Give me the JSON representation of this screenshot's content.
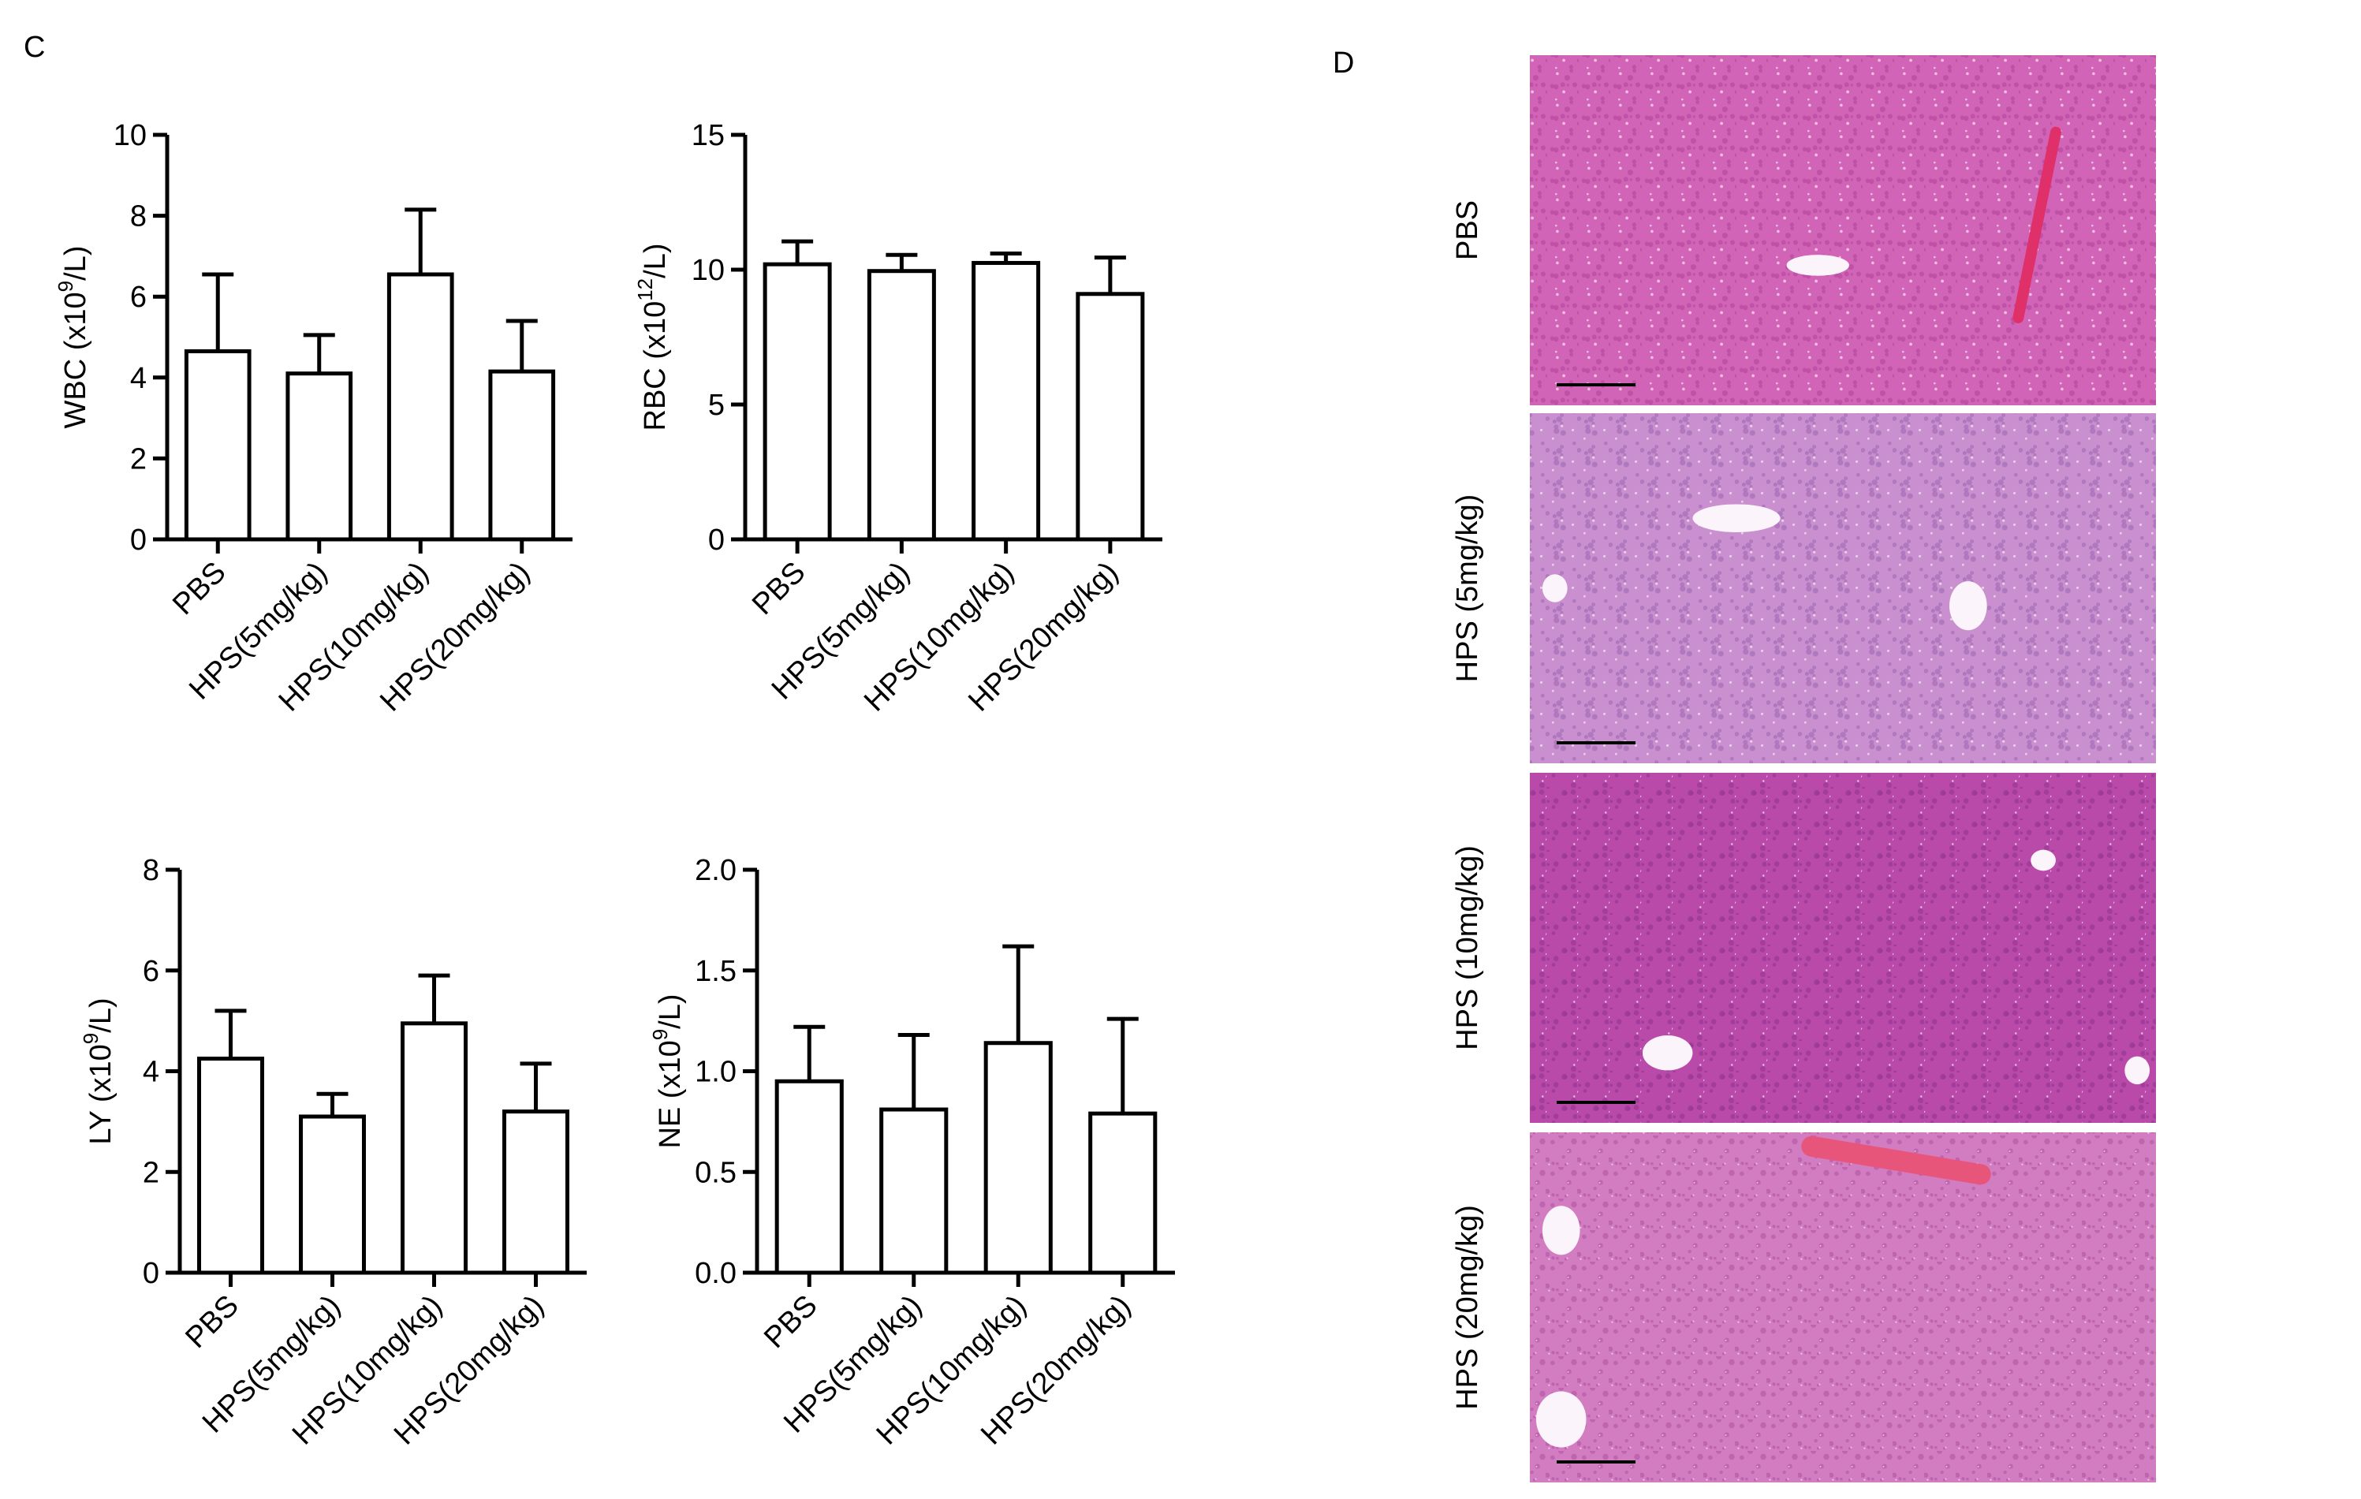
{
  "panels": {
    "left_letter": "C",
    "right_letter": "D"
  },
  "chart_data": [
    {
      "type": "bar",
      "categories": [
        "PBS",
        "HPS(5mg/kg)",
        "HPS(10mg/kg)",
        "HPS(20mg/kg)"
      ],
      "ylabel_main": "WBC (x10",
      "ylabel_sup": "9",
      "ylabel_end": "/L)",
      "ylim": [
        0,
        10
      ],
      "yticks": [
        0,
        2,
        4,
        6,
        8,
        10
      ],
      "ytick_labels": [
        "0",
        "2",
        "4",
        "6",
        "8",
        "10"
      ],
      "values": [
        4.65,
        4.1,
        6.55,
        4.15
      ],
      "errors": [
        1.9,
        0.95,
        1.6,
        1.25
      ]
    },
    {
      "type": "bar",
      "categories": [
        "PBS",
        "HPS(5mg/kg)",
        "HPS(10mg/kg)",
        "HPS(20mg/kg)"
      ],
      "ylabel_main": "RBC (x10",
      "ylabel_sup": "12",
      "ylabel_end": "/L)",
      "ylim": [
        0,
        15
      ],
      "yticks": [
        0,
        5,
        10,
        15
      ],
      "ytick_labels": [
        "0",
        "5",
        "10",
        "15"
      ],
      "values": [
        10.2,
        9.95,
        10.25,
        9.1
      ],
      "errors": [
        0.85,
        0.6,
        0.35,
        1.35
      ]
    },
    {
      "type": "bar",
      "categories": [
        "PBS",
        "HPS(5mg/kg)",
        "HPS(10mg/kg)",
        "HPS(20mg/kg)"
      ],
      "ylabel_main": "LY (x10",
      "ylabel_sup": "9",
      "ylabel_end": "/L)",
      "ylim": [
        0,
        8
      ],
      "yticks": [
        0,
        2,
        4,
        6,
        8
      ],
      "ytick_labels": [
        "0",
        "2",
        "4",
        "6",
        "8"
      ],
      "values": [
        4.25,
        3.1,
        4.95,
        3.2
      ],
      "errors": [
        0.95,
        0.45,
        0.95,
        0.95
      ]
    },
    {
      "type": "bar",
      "categories": [
        "PBS",
        "HPS(5mg/kg)",
        "HPS(10mg/kg)",
        "HPS(20mg/kg)"
      ],
      "ylabel_main": "NE (x10",
      "ylabel_sup": "9",
      "ylabel_end": "/L)",
      "ylim": [
        0,
        2.0
      ],
      "yticks": [
        0,
        0.5,
        1.0,
        1.5,
        2.0
      ],
      "ytick_labels": [
        "0.0",
        "0.5",
        "1.0",
        "1.5",
        "2.0"
      ],
      "values": [
        0.95,
        0.81,
        1.14,
        0.79
      ],
      "errors": [
        0.27,
        0.37,
        0.48,
        0.47
      ]
    }
  ],
  "histology": {
    "rows": [
      {
        "label": "PBS",
        "tone": "#d264b8",
        "dense": "#b84aa0"
      },
      {
        "label": "HPS (5mg/kg)",
        "tone": "#c98fce",
        "dense": "#a870b8"
      },
      {
        "label": "HPS (10mg/kg)",
        "tone": "#b94aaa",
        "dense": "#9a3894"
      },
      {
        "label": "HPS (20mg/kg)",
        "tone": "#d27cc2",
        "dense": "#b85ca8"
      }
    ]
  }
}
